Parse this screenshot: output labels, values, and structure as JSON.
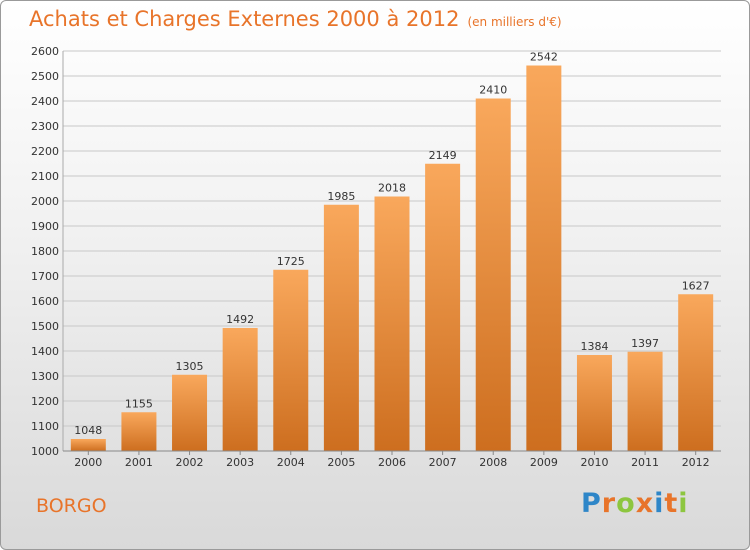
{
  "header": {
    "title": "Achats et Charges Externes 2000 à 2012",
    "unit": "(en milliers d'€)"
  },
  "footer": {
    "commune": "BORGO",
    "logo": "Proxiti"
  },
  "colors": {
    "title": "#e8742a",
    "bar_light": "#f9a85c",
    "bar_dark": "#cd6e1f",
    "grid": "#c8c8c8"
  },
  "chart_data": {
    "type": "bar",
    "title": "Achats et Charges Externes 2000 à 2012",
    "subtitle": "(en milliers d'€)",
    "categories": [
      "2000",
      "2001",
      "2002",
      "2003",
      "2004",
      "2005",
      "2006",
      "2007",
      "2008",
      "2009",
      "2010",
      "2011",
      "2012"
    ],
    "values": [
      1048,
      1155,
      1305,
      1492,
      1725,
      1985,
      2018,
      2149,
      2410,
      2542,
      1384,
      1397,
      1627
    ],
    "ylim": [
      1000,
      2600
    ],
    "yticks": [
      1000,
      1100,
      1200,
      1300,
      1400,
      1500,
      1600,
      1700,
      1800,
      1900,
      2000,
      2100,
      2200,
      2300,
      2400,
      2500,
      2600
    ],
    "grid": true,
    "legend": "none",
    "data_labels": true
  }
}
